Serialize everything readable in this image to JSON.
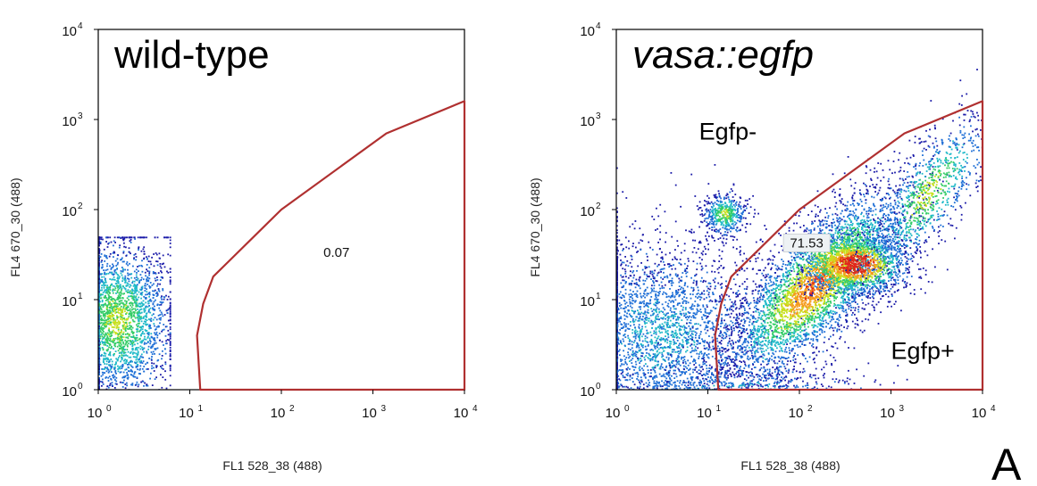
{
  "figure_letter": "A",
  "chart_data": [
    {
      "type": "scatter",
      "subtype": "flow-cytometry density dot plot",
      "title": "wild-type",
      "title_italic": false,
      "xlabel": "FL1 528_38 (488)",
      "ylabel": "FL4 670_30 (488)",
      "xscale": "log",
      "yscale": "log",
      "xlim": [
        1,
        10000
      ],
      "ylim": [
        1,
        10000
      ],
      "x_ticks": [
        1,
        10,
        100,
        1000,
        10000
      ],
      "y_ticks": [
        1,
        10,
        100,
        1000,
        10000
      ],
      "tick_base": "10",
      "tick_exponents": [
        "0",
        "1",
        "2",
        "3",
        "4"
      ],
      "grid": false,
      "density_colormap": [
        "#1a1aa8",
        "#1f6fd6",
        "#1fb9c8",
        "#33cc66",
        "#c8e020",
        "#f59a1a",
        "#e0281a"
      ],
      "populations": [
        {
          "center": [
            1.6,
            6
          ],
          "spread_decades": [
            0.3,
            0.45
          ],
          "count": 2600,
          "peak_density": "medium",
          "x_range": [
            1,
            6
          ],
          "y_range": [
            1,
            50
          ]
        }
      ],
      "gate": {
        "color": "#b03030",
        "vertices": [
          [
            13,
            1
          ],
          [
            12,
            4
          ],
          [
            14,
            9
          ],
          [
            18,
            18
          ],
          [
            100,
            100
          ],
          [
            1400,
            700
          ],
          [
            10000,
            1600
          ]
        ],
        "percentage": "0.07",
        "label_position": [
          400,
          30
        ],
        "label_boxed": false
      },
      "annotations": []
    },
    {
      "type": "scatter",
      "subtype": "flow-cytometry density dot plot",
      "title": "vasa::egfp",
      "title_italic": true,
      "xlabel": "FL1 528_38 (488)",
      "ylabel": "FL4 670_30 (488)",
      "xscale": "log",
      "yscale": "log",
      "xlim": [
        1,
        10000
      ],
      "ylim": [
        1,
        10000
      ],
      "x_ticks": [
        1,
        10,
        100,
        1000,
        10000
      ],
      "y_ticks": [
        1,
        10,
        100,
        1000,
        10000
      ],
      "tick_base": "10",
      "tick_exponents": [
        "0",
        "1",
        "2",
        "3",
        "4"
      ],
      "grid": false,
      "density_colormap": [
        "#1a1aa8",
        "#1f6fd6",
        "#1fb9c8",
        "#33cc66",
        "#c8e020",
        "#f59a1a",
        "#e0281a"
      ],
      "populations": [
        {
          "center": [
            3,
            4
          ],
          "spread_decades": [
            0.6,
            0.55
          ],
          "count": 3200,
          "peak_density": "low"
        },
        {
          "center": [
            15,
            90
          ],
          "spread_decades": [
            0.12,
            0.12
          ],
          "count": 450,
          "peak_density": "medium"
        },
        {
          "center": [
            150,
            15
          ],
          "spread_decades": [
            0.5,
            0.35
          ],
          "count": 4000,
          "peak_density": "high",
          "diagonal_slope": 0.8
        },
        {
          "center": [
            400,
            25
          ],
          "spread_decades": [
            0.3,
            0.18
          ],
          "count": 1500,
          "peak_density": "very high"
        },
        {
          "center": [
            2500,
            150
          ],
          "spread_decades": [
            0.35,
            0.3
          ],
          "count": 900,
          "peak_density": "medium",
          "diagonal_slope": 1.0
        },
        {
          "center": [
            20,
            1
          ],
          "spread_decades": [
            0.8,
            0.15
          ],
          "count": 700,
          "peak_density": "low"
        }
      ],
      "gate": {
        "color": "#b03030",
        "vertices": [
          [
            13,
            1
          ],
          [
            12,
            4
          ],
          [
            14,
            9
          ],
          [
            18,
            18
          ],
          [
            100,
            100
          ],
          [
            1400,
            700
          ],
          [
            10000,
            1600
          ]
        ],
        "percentage": "71.53",
        "label_position": [
          120,
          38
        ],
        "label_boxed": true
      },
      "annotations": [
        {
          "text": "Egfp-",
          "position": [
            8,
            600
          ]
        },
        {
          "text": "Egfp+",
          "position": [
            1000,
            2.2
          ]
        }
      ]
    }
  ]
}
